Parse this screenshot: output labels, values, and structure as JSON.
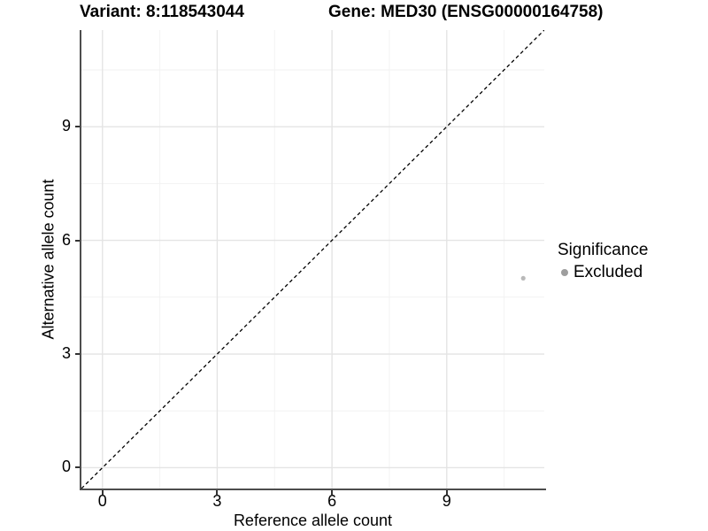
{
  "chart_data": {
    "type": "scatter",
    "title_left": "Variant: 8:118543044",
    "title_right": "Gene: MED30 (ENSG00000164758)",
    "xlabel": "Reference allele count",
    "ylabel": "Alternative allele count",
    "xlim": [
      -0.55,
      11.55
    ],
    "ylim": [
      -0.55,
      11.55
    ],
    "x_major_ticks": [
      0,
      3,
      6,
      9
    ],
    "y_major_ticks": [
      0,
      3,
      6,
      9
    ],
    "x_minor_ticks": [
      1.5,
      4.5,
      7.5,
      10.5
    ],
    "y_minor_ticks": [
      1.5,
      4.5,
      7.5,
      10.5
    ],
    "grid": "major+minor",
    "series": [
      {
        "name": "Excluded",
        "points": [
          {
            "x": 11,
            "y": 5
          }
        ],
        "color": "#b9b9b9",
        "point_radius": 2.6
      }
    ],
    "reference_line": {
      "type": "identity",
      "slope": 1,
      "intercept": 0,
      "style": "dashed",
      "color": "#000000"
    },
    "legend": {
      "title": "Significance",
      "position": "right",
      "items": [
        {
          "label": "Excluded",
          "color": "#9e9e9e"
        }
      ]
    }
  },
  "colors": {
    "background": "#ffffff",
    "axis_line": "#4d4d4d",
    "tick_mark": "#333333",
    "grid_major": "#e4e4e4",
    "grid_minor": "#f2f2f2",
    "text": "#000000"
  }
}
